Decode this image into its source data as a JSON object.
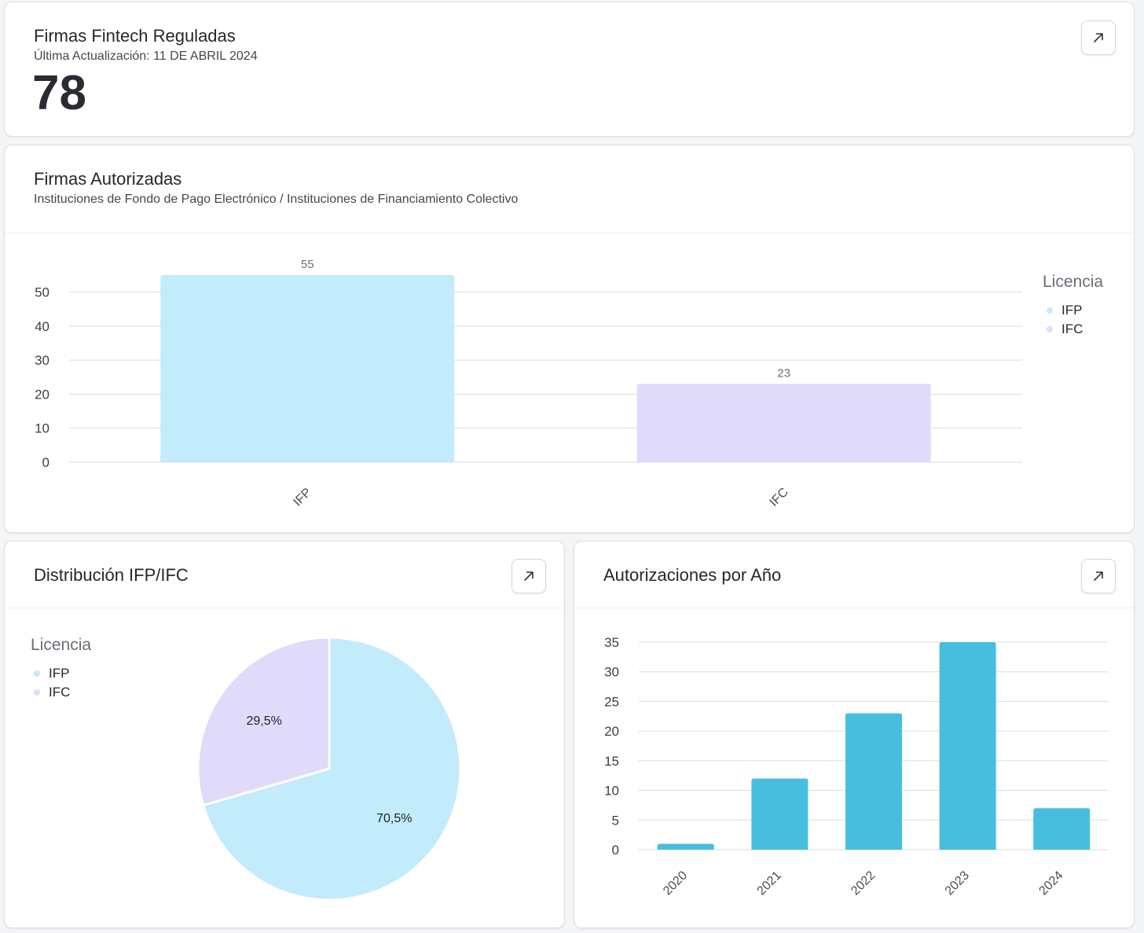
{
  "summary": {
    "title": "Firmas Fintech Reguladas",
    "updated": "Última Actualización: 11 DE ABRIL 2024",
    "value": "78",
    "expand_icon": "arrow-up-right-icon"
  },
  "authorized": {
    "title": "Firmas Autorizadas",
    "subtitle": "Instituciones de Fondo de Pago Electrónico / Instituciones de Financiamiento Colectivo",
    "legend_title": "Licencia",
    "legend": [
      {
        "label": "IFP",
        "color": "#c2ebfc"
      },
      {
        "label": "IFC",
        "color": "#e0dafb"
      }
    ]
  },
  "distribution": {
    "title": "Distribución IFP/IFC",
    "legend_title": "Licencia",
    "legend": [
      {
        "label": "IFP",
        "color": "#c2ebfc"
      },
      {
        "label": "IFC",
        "color": "#e0dafb"
      }
    ],
    "expand_icon": "arrow-up-right-icon"
  },
  "yearly": {
    "title": "Autorizaciones por Año",
    "expand_icon": "arrow-up-right-icon"
  },
  "chart_data": [
    {
      "type": "bar",
      "categories": [
        "IFP",
        "IFC"
      ],
      "values": [
        55,
        23
      ],
      "data_labels": [
        "55",
        "23"
      ],
      "colors": [
        "#c2ebfc",
        "#e0dafb"
      ],
      "ylim": [
        0,
        55
      ],
      "yticks": [
        0,
        10,
        20,
        30,
        40,
        50
      ],
      "grid": true,
      "legend": "right"
    },
    {
      "type": "pie",
      "labels": [
        "IFP",
        "IFC"
      ],
      "values": [
        70.5,
        29.5
      ],
      "data_labels": [
        "70,5%",
        "29,5%"
      ],
      "colors": [
        "#c2ebfc",
        "#e0dafb"
      ],
      "legend": "left"
    },
    {
      "type": "bar",
      "categories": [
        "2020",
        "2021",
        "2022",
        "2023",
        "2024"
      ],
      "values": [
        1,
        12,
        23,
        35,
        7
      ],
      "color": "#48bedf",
      "ylim": [
        0,
        35
      ],
      "yticks": [
        0,
        5,
        10,
        15,
        20,
        25,
        30,
        35
      ],
      "grid": true
    }
  ]
}
